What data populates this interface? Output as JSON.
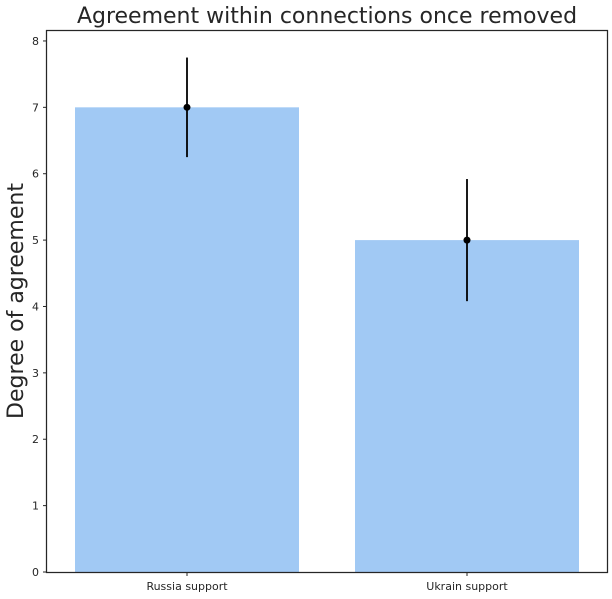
{
  "chart_data": {
    "type": "bar",
    "title": "Agreement within connections once removed",
    "xlabel": "",
    "ylabel": "Degree of agreement",
    "categories": [
      "Russia support",
      "Ukrain support"
    ],
    "values": [
      7.0,
      5.0
    ],
    "error_low": [
      6.25,
      4.08
    ],
    "error_high": [
      7.75,
      5.92
    ],
    "ylim": [
      0,
      8.15
    ],
    "yticks": [
      0,
      1,
      2,
      3,
      4,
      5,
      6,
      7,
      8
    ],
    "grid": false,
    "legend": "none",
    "colors": {
      "bar": "#a1c9f4",
      "point": "#000000",
      "axis": "#262626"
    }
  }
}
